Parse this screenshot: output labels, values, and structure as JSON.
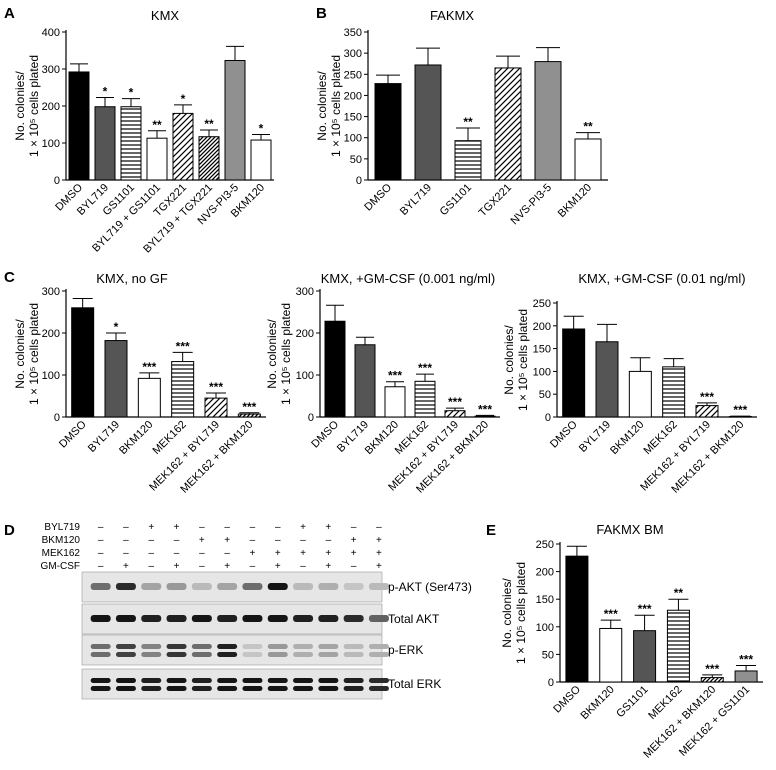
{
  "panel_labels": {
    "A": "A",
    "B": "B",
    "C": "C",
    "D": "D",
    "E": "E"
  },
  "ylabel_line1": "No. colonies/",
  "ylabel_line2": "1 × 10⁵ cells plated",
  "patterns": {
    "black": "#000000",
    "darkgray": "#555555",
    "gray": "#909090",
    "white": "#ffffff"
  },
  "chart_data": [
    {
      "id": "A",
      "type": "bar",
      "title": "KMX",
      "ylim": [
        0,
        400
      ],
      "yticks": [
        0,
        100,
        200,
        300,
        400
      ],
      "categories": [
        "DMSO",
        "BYL719",
        "GS1101",
        "BYL719 + GS1101",
        "TGX221",
        "BYL719 + TGX221",
        "NVS-PI3-5",
        "BKM120"
      ],
      "values": [
        292,
        198,
        198,
        113,
        180,
        117,
        323,
        108
      ],
      "errors": [
        22,
        25,
        22,
        20,
        23,
        18,
        38,
        15
      ],
      "fills": [
        "black",
        "darkgray",
        "hlines",
        "white",
        "diag",
        "diagdense",
        "gray",
        "white"
      ],
      "significance": [
        "",
        "*",
        "*",
        "**",
        "*",
        "**",
        "",
        "*"
      ]
    },
    {
      "id": "B",
      "type": "bar",
      "title": "FAKMX",
      "ylim": [
        0,
        350
      ],
      "yticks": [
        0,
        50,
        100,
        150,
        200,
        250,
        300,
        350
      ],
      "categories": [
        "DMSO",
        "BYL719",
        "GS1101",
        "TGX221",
        "NVS-PI3-5",
        "BKM120"
      ],
      "values": [
        228,
        272,
        93,
        265,
        280,
        97
      ],
      "errors": [
        20,
        40,
        30,
        28,
        33,
        15
      ],
      "fills": [
        "black",
        "darkgray",
        "hlines",
        "diag",
        "gray",
        "white"
      ],
      "significance": [
        "",
        "",
        "**",
        "",
        "",
        "**"
      ]
    },
    {
      "id": "C1",
      "type": "bar",
      "title": "KMX, no GF",
      "ylim": [
        0,
        300
      ],
      "yticks": [
        0,
        100,
        200,
        300
      ],
      "categories": [
        "DMSO",
        "BYL719",
        "BKM120",
        "MEK162",
        "MEK162 + BYL719",
        "MEK162 + BKM120"
      ],
      "values": [
        260,
        182,
        92,
        132,
        45,
        7
      ],
      "errors": [
        22,
        18,
        13,
        22,
        12,
        3
      ],
      "fills": [
        "black",
        "darkgray",
        "white",
        "hlines",
        "diag",
        "diagdense"
      ],
      "significance": [
        "",
        "*",
        "***",
        "***",
        "***",
        "***"
      ]
    },
    {
      "id": "C2",
      "type": "bar",
      "title": "KMX, +GM-CSF (0.001 ng/ml)",
      "ylim": [
        0,
        300
      ],
      "yticks": [
        0,
        100,
        200,
        300
      ],
      "categories": [
        "DMSO",
        "BYL719",
        "BKM120",
        "MEK162",
        "MEK162 + BYL719",
        "MEK162 + BKM120"
      ],
      "values": [
        228,
        172,
        72,
        85,
        15,
        2
      ],
      "errors": [
        38,
        18,
        12,
        17,
        6,
        2
      ],
      "fills": [
        "black",
        "darkgray",
        "white",
        "hlines",
        "diag",
        "diagdense"
      ],
      "significance": [
        "",
        "",
        "***",
        "***",
        "***",
        "***"
      ]
    },
    {
      "id": "C3",
      "type": "bar",
      "title": "KMX, +GM-CSF (0.01 ng/ml)",
      "ylim": [
        0,
        250
      ],
      "yticks": [
        0,
        50,
        100,
        150,
        200,
        250
      ],
      "categories": [
        "DMSO",
        "BYL719",
        "BKM120",
        "MEK162",
        "MEK162 + BYL719",
        "MEK162 + BKM120"
      ],
      "values": [
        193,
        165,
        100,
        110,
        25,
        1
      ],
      "errors": [
        28,
        38,
        30,
        18,
        6,
        1
      ],
      "fills": [
        "black",
        "darkgray",
        "white",
        "hlines",
        "diag",
        "diagdense"
      ],
      "significance": [
        "",
        "",
        "",
        "",
        "***",
        "***"
      ]
    },
    {
      "id": "E",
      "type": "bar",
      "title": "FAKMX BM",
      "ylim": [
        0,
        250
      ],
      "yticks": [
        0,
        50,
        100,
        150,
        200,
        250
      ],
      "categories": [
        "DMSO",
        "BKM120",
        "GS1101",
        "MEK162",
        "MEK162 + BKM120",
        "MEK162 + GS1101"
      ],
      "values": [
        228,
        97,
        93,
        130,
        8,
        20
      ],
      "errors": [
        18,
        15,
        28,
        20,
        5,
        10
      ],
      "fills": [
        "black",
        "white",
        "darkgray",
        "hlines",
        "diagdense",
        "gray"
      ],
      "significance": [
        "",
        "***",
        "***",
        "**",
        "***",
        "***"
      ]
    }
  ],
  "western": {
    "treatments": [
      {
        "name": "BYL719",
        "marks": [
          "–",
          "–",
          "+",
          "+",
          "–",
          "–",
          "–",
          "–",
          "+",
          "+",
          "–",
          "–"
        ]
      },
      {
        "name": "BKM120",
        "marks": [
          "–",
          "–",
          "–",
          "–",
          "+",
          "+",
          "–",
          "–",
          "–",
          "–",
          "+",
          "+"
        ]
      },
      {
        "name": "MEK162",
        "marks": [
          "–",
          "–",
          "–",
          "–",
          "–",
          "–",
          "+",
          "+",
          "+",
          "+",
          "+",
          "+"
        ]
      },
      {
        "name": "GM-CSF",
        "marks": [
          "–",
          "+",
          "–",
          "+",
          "–",
          "+",
          "–",
          "+",
          "–",
          "+",
          "–",
          "+"
        ]
      }
    ],
    "blots": [
      {
        "label": "p-AKT (Ser473)",
        "intensity": [
          0.55,
          0.85,
          0.3,
          0.35,
          0.2,
          0.3,
          0.55,
          0.95,
          0.2,
          0.25,
          0.15,
          0.2
        ],
        "double": false
      },
      {
        "label": "Total AKT",
        "intensity": [
          0.95,
          0.95,
          0.9,
          0.9,
          0.95,
          0.9,
          0.95,
          0.95,
          0.9,
          0.9,
          0.85,
          0.6
        ],
        "double": false
      },
      {
        "label": "p-ERK",
        "intensity": [
          0.55,
          0.75,
          0.45,
          0.8,
          0.55,
          0.9,
          0.15,
          0.35,
          0.25,
          0.3,
          0.2,
          0.25
        ],
        "double": true
      },
      {
        "label": "Total ERK",
        "intensity": [
          0.95,
          0.95,
          0.9,
          0.95,
          0.9,
          0.95,
          0.95,
          0.95,
          0.95,
          0.95,
          0.9,
          0.85
        ],
        "double": true
      }
    ]
  }
}
